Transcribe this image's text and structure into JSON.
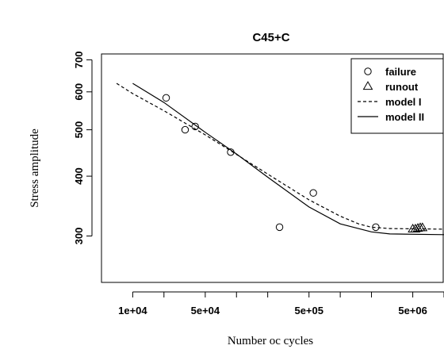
{
  "chart_data": {
    "type": "scatter",
    "title": "C45+C",
    "xlabel": "Number oc cycles",
    "ylabel": "Stress amplitude",
    "x_scale": "log",
    "y_scale": "log",
    "xlim": [
      5000,
      10000000
    ],
    "ylim": [
      240,
      720
    ],
    "x_ticks": [
      {
        "value": 10000,
        "label": "1e+04"
      },
      {
        "value": 50000,
        "label": "5e+04"
      },
      {
        "value": 500000,
        "label": "5e+05"
      },
      {
        "value": 5000000,
        "label": "5e+06"
      }
    ],
    "x_minor_ticks": [
      20000,
      100000,
      200000,
      1000000,
      2000000,
      10000000
    ],
    "y_ticks": [
      {
        "value": 300,
        "label": "300"
      },
      {
        "value": 400,
        "label": "400"
      },
      {
        "value": 500,
        "label": "500"
      },
      {
        "value": 600,
        "label": "600"
      },
      {
        "value": 700,
        "label": "700"
      }
    ],
    "grid": false,
    "legend_position": "top-right",
    "series": [
      {
        "name": "failure",
        "kind": "points",
        "marker": "circle",
        "points": [
          {
            "x": 21000,
            "y": 583
          },
          {
            "x": 32000,
            "y": 500
          },
          {
            "x": 40000,
            "y": 508
          },
          {
            "x": 88000,
            "y": 449
          },
          {
            "x": 260000,
            "y": 313
          },
          {
            "x": 550000,
            "y": 369
          },
          {
            "x": 2200000,
            "y": 313
          }
        ]
      },
      {
        "name": "runout",
        "kind": "points",
        "marker": "triangle",
        "points": [
          {
            "x": 5000000,
            "y": 310
          },
          {
            "x": 5300000,
            "y": 310
          },
          {
            "x": 5600000,
            "y": 311
          },
          {
            "x": 5900000,
            "y": 312
          },
          {
            "x": 6200000,
            "y": 312
          }
        ]
      },
      {
        "name": "model I",
        "kind": "line",
        "dash": "dashed",
        "points": [
          {
            "x": 7000,
            "y": 625
          },
          {
            "x": 10000,
            "y": 595
          },
          {
            "x": 20000,
            "y": 548
          },
          {
            "x": 50000,
            "y": 488
          },
          {
            "x": 100000,
            "y": 444
          },
          {
            "x": 200000,
            "y": 404
          },
          {
            "x": 500000,
            "y": 357
          },
          {
            "x": 1000000,
            "y": 330
          },
          {
            "x": 1500000,
            "y": 318
          },
          {
            "x": 2000000,
            "y": 313
          },
          {
            "x": 3000000,
            "y": 311
          },
          {
            "x": 10000000,
            "y": 310
          }
        ]
      },
      {
        "name": "model II",
        "kind": "line",
        "dash": "solid",
        "points": [
          {
            "x": 10000,
            "y": 625
          },
          {
            "x": 20000,
            "y": 570
          },
          {
            "x": 50000,
            "y": 494
          },
          {
            "x": 100000,
            "y": 445
          },
          {
            "x": 200000,
            "y": 398
          },
          {
            "x": 500000,
            "y": 345
          },
          {
            "x": 1000000,
            "y": 318
          },
          {
            "x": 2000000,
            "y": 306
          },
          {
            "x": 3000000,
            "y": 303
          },
          {
            "x": 10000000,
            "y": 302
          }
        ]
      }
    ]
  }
}
